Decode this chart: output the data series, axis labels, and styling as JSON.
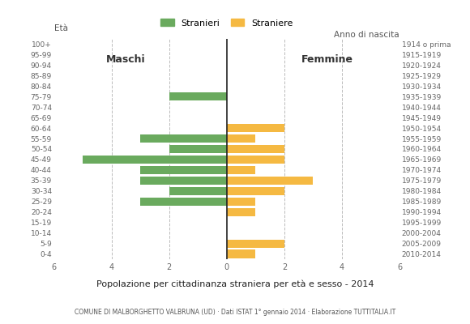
{
  "age_groups": [
    "0-4",
    "5-9",
    "10-14",
    "15-19",
    "20-24",
    "25-29",
    "30-34",
    "35-39",
    "40-44",
    "45-49",
    "50-54",
    "55-59",
    "60-64",
    "65-69",
    "70-74",
    "75-79",
    "80-84",
    "85-89",
    "90-94",
    "95-99",
    "100+"
  ],
  "birth_years": [
    "2010-2014",
    "2005-2009",
    "2000-2004",
    "1995-1999",
    "1990-1994",
    "1985-1989",
    "1980-1984",
    "1975-1979",
    "1970-1974",
    "1965-1969",
    "1960-1964",
    "1955-1959",
    "1950-1954",
    "1945-1949",
    "1940-1944",
    "1935-1939",
    "1930-1934",
    "1925-1929",
    "1920-1924",
    "1915-1919",
    "1914 o prima"
  ],
  "males": [
    0,
    0,
    0,
    0,
    0,
    3,
    2,
    3,
    3,
    5,
    2,
    3,
    0,
    0,
    0,
    2,
    0,
    0,
    0,
    0,
    0
  ],
  "females": [
    1,
    2,
    0,
    0,
    1,
    1,
    2,
    3,
    1,
    2,
    2,
    1,
    2,
    0,
    0,
    0,
    0,
    0,
    0,
    0,
    0
  ],
  "male_color": "#6aaa5e",
  "female_color": "#f5b942",
  "background_color": "#ffffff",
  "grid_color": "#bbbbbb",
  "title": "Popolazione per cittadinanza straniera per età e sesso - 2014",
  "subtitle": "COMUNE DI MALBORGHETTO VALBRUNA (UD) · Dati ISTAT 1° gennaio 2014 · Elaborazione TUTTITALIA.IT",
  "legend_male": "Stranieri",
  "legend_female": "Straniere",
  "label_eta": "Età",
  "label_anno": "Anno di nascita",
  "label_maschi": "Maschi",
  "label_femmine": "Femmine",
  "xlim": 6
}
